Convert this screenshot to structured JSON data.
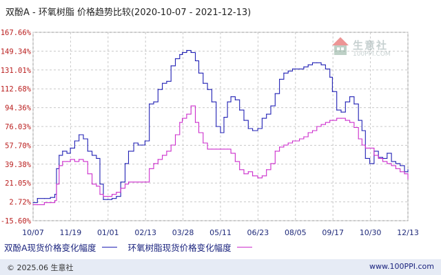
{
  "title": "双酚A - 环氧树脂 价格趋势比较(2020-10-07 - 2021-12-13)",
  "watermark": {
    "name": "生意社",
    "url": "100PPI.COM"
  },
  "footer": {
    "copyright": "© 2025.06 生意社",
    "site": "www.100PPI.com"
  },
  "colors": {
    "series1": "#1f1fb4",
    "series2": "#cc2ccc",
    "grid": "#c8c8c8",
    "tick": "#b91c1c"
  },
  "chart_data": {
    "type": "line",
    "title": "双酚A - 环氧树脂 价格趋势比较(2020-10-07 - 2021-12-13)",
    "ylim": [
      -15.6,
      167.66
    ],
    "yticks": [
      "167.66%",
      "149.34%",
      "131.01%",
      "112.68%",
      "94.36%",
      "76.03%",
      "57.70%",
      "39.38%",
      "21.05%",
      "2.72%",
      "-15.60%"
    ],
    "ytick_values": [
      167.66,
      149.34,
      131.01,
      112.68,
      94.36,
      76.03,
      57.7,
      39.38,
      21.05,
      2.72,
      -15.6
    ],
    "xticks": [
      "10/07",
      "11/19",
      "01/01",
      "02/13",
      "03/28",
      "05/11",
      "06/23",
      "08/05",
      "09/17",
      "10/30",
      "12/13"
    ],
    "x_range": [
      "2020-10-07",
      "2021-12-13"
    ],
    "series": [
      {
        "name": "双酚A现货价格变化幅度",
        "color": "#1f1fb4",
        "x": [
          "2020-10-07",
          "2020-10-12",
          "2020-10-20",
          "2020-10-27",
          "2020-11-01",
          "2020-11-03",
          "2020-11-06",
          "2020-11-10",
          "2020-11-15",
          "2020-11-19",
          "2020-11-24",
          "2020-11-29",
          "2020-12-04",
          "2020-12-09",
          "2020-12-14",
          "2020-12-19",
          "2020-12-23",
          "2020-12-27",
          "2021-01-01",
          "2021-01-06",
          "2021-01-11",
          "2021-01-16",
          "2021-01-21",
          "2021-01-25",
          "2021-01-31",
          "2021-02-05",
          "2021-02-10",
          "2021-02-13",
          "2021-02-18",
          "2021-02-23",
          "2021-02-28",
          "2021-03-05",
          "2021-03-10",
          "2021-03-15",
          "2021-03-20",
          "2021-03-25",
          "2021-03-28",
          "2021-04-02",
          "2021-04-07",
          "2021-04-12",
          "2021-04-16",
          "2021-04-21",
          "2021-04-26",
          "2021-05-01",
          "2021-05-06",
          "2021-05-11",
          "2021-05-15",
          "2021-05-19",
          "2021-05-23",
          "2021-05-28",
          "2021-06-02",
          "2021-06-07",
          "2021-06-12",
          "2021-06-17",
          "2021-06-23",
          "2021-06-28",
          "2021-07-03",
          "2021-07-08",
          "2021-07-13",
          "2021-07-18",
          "2021-07-23",
          "2021-07-28",
          "2021-08-02",
          "2021-08-05",
          "2021-08-10",
          "2021-08-15",
          "2021-08-20",
          "2021-08-25",
          "2021-08-30",
          "2021-09-04",
          "2021-09-09",
          "2021-09-14",
          "2021-09-17",
          "2021-09-22",
          "2021-09-27",
          "2021-10-02",
          "2021-10-07",
          "2021-10-12",
          "2021-10-17",
          "2021-10-21",
          "2021-10-25",
          "2021-10-30",
          "2021-11-04",
          "2021-11-09",
          "2021-11-14",
          "2021-11-19",
          "2021-11-24",
          "2021-11-29",
          "2021-12-04",
          "2021-12-09",
          "2021-12-13"
        ],
        "values": [
          2,
          6,
          6,
          7,
          10,
          35,
          48,
          52,
          50,
          55,
          62,
          68,
          64,
          52,
          48,
          45,
          20,
          5,
          5,
          6,
          8,
          22,
          40,
          52,
          60,
          58,
          58,
          62,
          98,
          100,
          112,
          118,
          120,
          135,
          142,
          146,
          148,
          150,
          148,
          140,
          128,
          118,
          112,
          100,
          76,
          70,
          85,
          100,
          105,
          102,
          92,
          82,
          74,
          72,
          74,
          84,
          88,
          96,
          108,
          122,
          128,
          130,
          132,
          132,
          132,
          134,
          136,
          138,
          138,
          136,
          132,
          124,
          110,
          92,
          90,
          100,
          105,
          98,
          82,
          72,
          45,
          40,
          52,
          46,
          45,
          50,
          42,
          40,
          38,
          32,
          34
        ]
      },
      {
        "name": "环氧树脂现货价格变化幅度",
        "color": "#cc2ccc",
        "x": [
          "2020-10-07",
          "2020-10-12",
          "2020-10-20",
          "2020-10-27",
          "2020-11-01",
          "2020-11-03",
          "2020-11-06",
          "2020-11-10",
          "2020-11-15",
          "2020-11-19",
          "2020-11-24",
          "2020-11-29",
          "2020-12-04",
          "2020-12-09",
          "2020-12-14",
          "2020-12-19",
          "2020-12-23",
          "2020-12-27",
          "2021-01-01",
          "2021-01-06",
          "2021-01-11",
          "2021-01-16",
          "2021-01-21",
          "2021-01-25",
          "2021-01-31",
          "2021-02-05",
          "2021-02-10",
          "2021-02-13",
          "2021-02-18",
          "2021-02-23",
          "2021-02-28",
          "2021-03-05",
          "2021-03-10",
          "2021-03-15",
          "2021-03-20",
          "2021-03-25",
          "2021-03-28",
          "2021-04-02",
          "2021-04-07",
          "2021-04-12",
          "2021-04-16",
          "2021-04-21",
          "2021-04-26",
          "2021-05-01",
          "2021-05-06",
          "2021-05-11",
          "2021-05-15",
          "2021-05-19",
          "2021-05-23",
          "2021-05-28",
          "2021-06-02",
          "2021-06-07",
          "2021-06-12",
          "2021-06-17",
          "2021-06-23",
          "2021-06-28",
          "2021-07-03",
          "2021-07-08",
          "2021-07-13",
          "2021-07-18",
          "2021-07-23",
          "2021-07-28",
          "2021-08-02",
          "2021-08-05",
          "2021-08-10",
          "2021-08-15",
          "2021-08-20",
          "2021-08-25",
          "2021-08-30",
          "2021-09-04",
          "2021-09-09",
          "2021-09-14",
          "2021-09-17",
          "2021-09-22",
          "2021-09-27",
          "2021-10-02",
          "2021-10-07",
          "2021-10-12",
          "2021-10-17",
          "2021-10-21",
          "2021-10-25",
          "2021-10-30",
          "2021-11-04",
          "2021-11-09",
          "2021-11-14",
          "2021-11-19",
          "2021-11-24",
          "2021-11-29",
          "2021-12-04",
          "2021-12-09",
          "2021-12-13"
        ],
        "values": [
          0,
          0,
          2,
          2,
          4,
          20,
          38,
          42,
          42,
          44,
          42,
          44,
          42,
          30,
          20,
          18,
          10,
          8,
          8,
          10,
          12,
          16,
          20,
          22,
          22,
          22,
          22,
          22,
          35,
          40,
          44,
          48,
          52,
          58,
          68,
          80,
          84,
          88,
          96,
          80,
          70,
          60,
          54,
          54,
          54,
          54,
          54,
          54,
          50,
          42,
          34,
          30,
          32,
          28,
          26,
          28,
          34,
          40,
          52,
          56,
          58,
          60,
          62,
          62,
          64,
          66,
          70,
          72,
          76,
          78,
          80,
          82,
          82,
          84,
          84,
          82,
          80,
          75,
          64,
          58,
          55,
          55,
          48,
          45,
          42,
          40,
          38,
          35,
          32,
          30,
          25
        ]
      }
    ]
  }
}
